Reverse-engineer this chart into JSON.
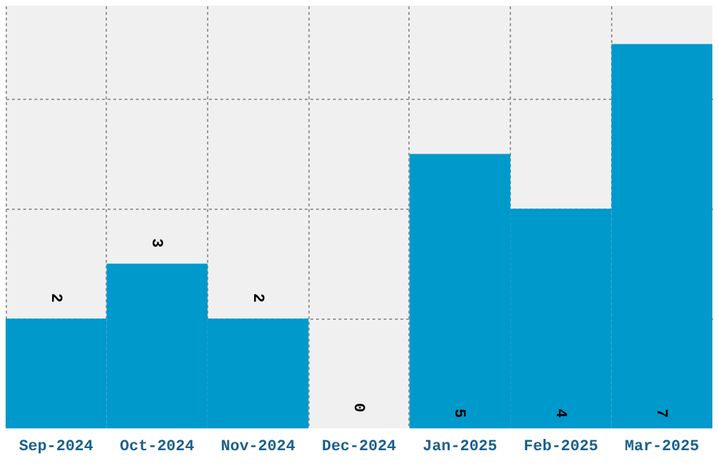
{
  "chart_data": {
    "type": "bar",
    "categories": [
      "Sep-2024",
      "Oct-2024",
      "Nov-2024",
      "Dec-2024",
      "Jan-2025",
      "Feb-2025",
      "Mar-2025"
    ],
    "values": [
      2,
      3,
      2,
      0,
      5,
      4,
      7
    ],
    "color": "#0099cc",
    "data_labels": true,
    "ylim": [
      0,
      7.7
    ],
    "yticks": [
      {
        "value": 2,
        "label": null
      },
      {
        "value": 4,
        "label": null
      },
      {
        "value": 6,
        "label": null
      }
    ],
    "grid": true,
    "tick_labels": "x"
  }
}
